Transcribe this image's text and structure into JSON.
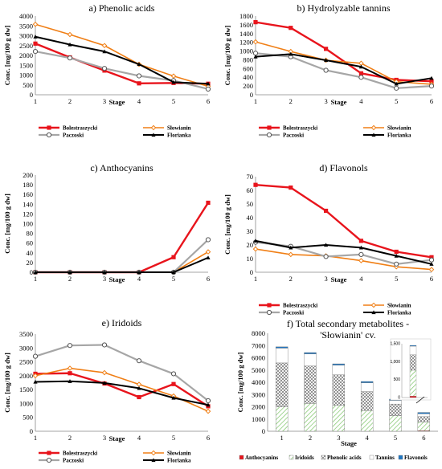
{
  "colors": {
    "Bolestraszycki": "#e8141c",
    "Słowianin": "#f07f16",
    "Paczoski": "#a6a6a6",
    "Florianka": "#000000",
    "Anthocyanins": "#e8141c",
    "Iridoids": "#8fd07a",
    "Phenolic acids": "#555555",
    "Tannins": "#bdbdbd",
    "Flavonols": "#1f77c4"
  },
  "chart_data": [
    {
      "type": "line",
      "title": "a) Phenolic acids",
      "xlabel": "Stage",
      "ylabel": "Conc. [mg/100 g dw]",
      "x": [
        1,
        2,
        3,
        4,
        5,
        6
      ],
      "ylim": [
        0,
        4000
      ],
      "yticks": [
        0,
        500,
        1000,
        1500,
        2000,
        2500,
        3000,
        3500,
        4000
      ],
      "legend": "below",
      "series": [
        {
          "name": "Bolestraszycki",
          "values": [
            2600,
            1900,
            1230,
            580,
            600,
            560
          ]
        },
        {
          "name": "Słowianin",
          "values": [
            3580,
            3060,
            2500,
            1550,
            950,
            430
          ]
        },
        {
          "name": "Paczoski",
          "values": [
            2200,
            1870,
            1340,
            960,
            720,
            290
          ]
        },
        {
          "name": "Florianka",
          "values": [
            2950,
            2550,
            2200,
            1550,
            640,
            560
          ]
        }
      ]
    },
    {
      "type": "line",
      "title": "b) Hydrolyzable tannins",
      "xlabel": "Stage",
      "ylabel": "Conc. [mg/100 g dw]",
      "x": [
        1,
        2,
        3,
        4,
        5,
        6
      ],
      "ylim": [
        0,
        1800
      ],
      "yticks": [
        0,
        200,
        400,
        600,
        800,
        1000,
        1200,
        1400,
        1600,
        1800
      ],
      "legend": "below",
      "series": [
        {
          "name": "Bolestraszycki",
          "values": [
            1660,
            1530,
            1050,
            490,
            340,
            310
          ]
        },
        {
          "name": "Słowianin",
          "values": [
            1210,
            990,
            790,
            720,
            300,
            240
          ]
        },
        {
          "name": "Paczoski",
          "values": [
            950,
            870,
            560,
            400,
            150,
            200
          ]
        },
        {
          "name": "Florianka",
          "values": [
            870,
            930,
            790,
            640,
            250,
            380
          ]
        }
      ]
    },
    {
      "type": "line",
      "title": "c) Anthocyanins",
      "xlabel": "Stage",
      "ylabel": "Conc. [mg/100 g dw]",
      "x": [
        1,
        2,
        3,
        4,
        5,
        6
      ],
      "ylim": [
        0,
        200
      ],
      "yticks": [
        0,
        20,
        40,
        60,
        80,
        100,
        120,
        140,
        160,
        180,
        200
      ],
      "legend": "none",
      "series": [
        {
          "name": "Bolestraszycki",
          "values": [
            0,
            0,
            0,
            0,
            31,
            143
          ]
        },
        {
          "name": "Słowianin",
          "values": [
            0,
            0,
            0,
            0,
            0,
            42
          ]
        },
        {
          "name": "Paczoski",
          "values": [
            0,
            0,
            0,
            0,
            0,
            67
          ]
        },
        {
          "name": "Florianka",
          "values": [
            0,
            0,
            0,
            0,
            0,
            30
          ]
        }
      ]
    },
    {
      "type": "line",
      "title": "d) Flavonols",
      "xlabel": "Stage",
      "ylabel": "Conc. [mg/100 g dw]",
      "x": [
        1,
        2,
        3,
        4,
        5,
        6
      ],
      "ylim": [
        0,
        70
      ],
      "yticks": [
        0,
        10,
        20,
        30,
        40,
        50,
        60,
        70
      ],
      "legend": "below",
      "series": [
        {
          "name": "Bolestraszycki",
          "values": [
            64,
            62,
            45,
            23,
            15,
            11
          ]
        },
        {
          "name": "Słowianin",
          "values": [
            17,
            13,
            12,
            8.5,
            4,
            2
          ]
        },
        {
          "name": "Paczoski",
          "values": [
            22,
            19,
            11.5,
            13,
            6,
            9
          ]
        },
        {
          "name": "Florianka",
          "values": [
            23,
            18,
            20,
            18,
            12,
            6
          ]
        }
      ]
    },
    {
      "type": "line",
      "title": "e) Iridoids",
      "xlabel": "Stage",
      "ylabel": "Conc. [mg/100 g dw]",
      "x": [
        1,
        2,
        3,
        4,
        5,
        6
      ],
      "ylim": [
        0,
        3500
      ],
      "yticks": [
        0,
        500,
        1000,
        1500,
        2000,
        2500,
        3000,
        3500
      ],
      "legend": "below",
      "series": [
        {
          "name": "Bolestraszycki",
          "values": [
            2070,
            2090,
            1720,
            1230,
            1700,
            900
          ]
        },
        {
          "name": "Słowianin",
          "values": [
            2000,
            2270,
            2110,
            1690,
            1270,
            720
          ]
        },
        {
          "name": "Paczoski",
          "values": [
            2700,
            3090,
            3110,
            2540,
            2070,
            1100
          ]
        },
        {
          "name": "Florianka",
          "values": [
            1780,
            1800,
            1740,
            1550,
            1200,
            950
          ]
        }
      ]
    },
    {
      "type": "bar",
      "stacked": true,
      "title_lines": [
        "f) Total secondary metabolites -",
        "'Słowianin' cv."
      ],
      "xlabel": "Stage",
      "ylabel": "Conc. [mg/100 g dw]",
      "categories": [
        "1",
        "2",
        "3",
        "4",
        "5",
        "6"
      ],
      "ylim": [
        0,
        8000
      ],
      "yticks": [
        0,
        1000,
        2000,
        3000,
        4000,
        5000,
        6000,
        7000,
        8000
      ],
      "legend": "bottom",
      "series": [
        {
          "name": "Anthocyanins",
          "values": [
            0,
            0,
            0,
            0,
            0,
            42
          ]
        },
        {
          "name": "Iridoids",
          "values": [
            2000,
            2270,
            2110,
            1690,
            1270,
            720
          ]
        },
        {
          "name": "Phenolic acids",
          "values": [
            3580,
            3060,
            2500,
            1550,
            950,
            430
          ]
        },
        {
          "name": "Tannins",
          "values": [
            1210,
            990,
            790,
            720,
            300,
            240
          ]
        },
        {
          "name": "Flavonols",
          "values": [
            17,
            13,
            12,
            9,
            4,
            2
          ]
        }
      ],
      "inset": {
        "yticks": [
          0,
          500,
          1000,
          1500
        ],
        "ylim": [
          0,
          1500
        ],
        "category": "6"
      }
    }
  ]
}
